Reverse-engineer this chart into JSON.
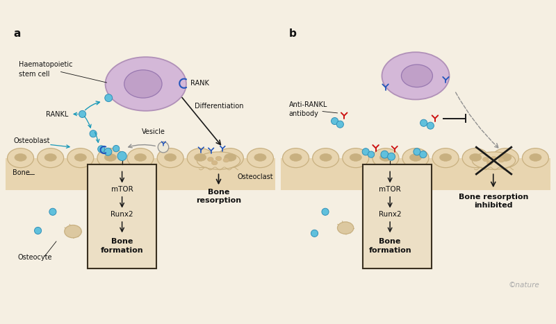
{
  "bg_color": "#f5efe2",
  "bone_color": "#e8d5b0",
  "bone_outline": "#c8b080",
  "bone_body_color": "#ddc898",
  "cell_fill": "#d4b8d8",
  "cell_outline": "#b090b8",
  "nucleus_fill": "#c0a0c8",
  "nucleus_outline": "#9878b0",
  "blue_dot": "#60c0dc",
  "blue_dot_outline": "#3090b8",
  "arrow_color": "#1a1a1a",
  "gray_arrow": "#909090",
  "teal_arrow": "#1898b8",
  "red_y_color": "#cc1111",
  "blue_y_color": "#2255bb",
  "box_color": "#ecdfc5",
  "box_outline": "#3a3020",
  "text_color": "#111111",
  "label_a": "a",
  "label_b": "b",
  "nature_credit": "©nature",
  "osteocyte_color": "#dcc8a0",
  "osteoclast_spot": "#d4b888"
}
